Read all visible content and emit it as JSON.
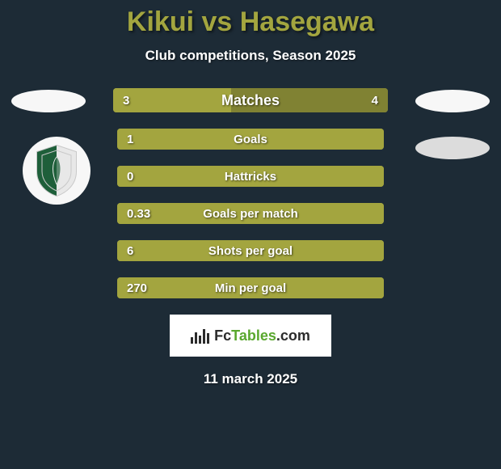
{
  "background_color": "#1d2b36",
  "title": {
    "text": "Kikui vs Hasegawa",
    "color": "#a3a53f",
    "fontsize": 34
  },
  "subtitle": {
    "text": "Club competitions, Season 2025",
    "color": "#ffffff",
    "fontsize": 17
  },
  "left_ellipse_color": "#f7f7f7",
  "right_ellipse_color": "#f7f7f7",
  "right_ellipse2_color": "#dcdcdc",
  "crest_bg": "#f7f7f7",
  "crest_green": "#1e5f3a",
  "crest_light": "#e8e8e8",
  "stats": {
    "label_color": "#ffffff",
    "value_color": "#ffffff",
    "label_fontsize_first": 18,
    "label_fontsize": 15,
    "value_fontsize": 15,
    "bar_left_color": "#a3a53f",
    "bar_right_color": "#808233",
    "bg_color": "#a3a53f",
    "rows": [
      {
        "label": "Matches",
        "left": "3",
        "right": "4",
        "left_pct": 42.86,
        "first": true
      },
      {
        "label": "Goals",
        "left": "1",
        "right": "",
        "left_pct": 100
      },
      {
        "label": "Hattricks",
        "left": "0",
        "right": "",
        "left_pct": 100
      },
      {
        "label": "Goals per match",
        "left": "0.33",
        "right": "",
        "left_pct": 100
      },
      {
        "label": "Shots per goal",
        "left": "6",
        "right": "",
        "left_pct": 100
      },
      {
        "label": "Min per goal",
        "left": "270",
        "right": "",
        "left_pct": 100
      }
    ]
  },
  "footer_logo": {
    "bg": "#ffffff",
    "bar_color": "#2b2b2b",
    "text_fc": "Fc",
    "text_tables": "Tables",
    "text_com": ".com",
    "fc_color": "#2b2b2b",
    "tables_color": "#5aa82f",
    "com_color": "#2b2b2b"
  },
  "footer_date": {
    "text": "11 march 2025",
    "color": "#ffffff"
  }
}
